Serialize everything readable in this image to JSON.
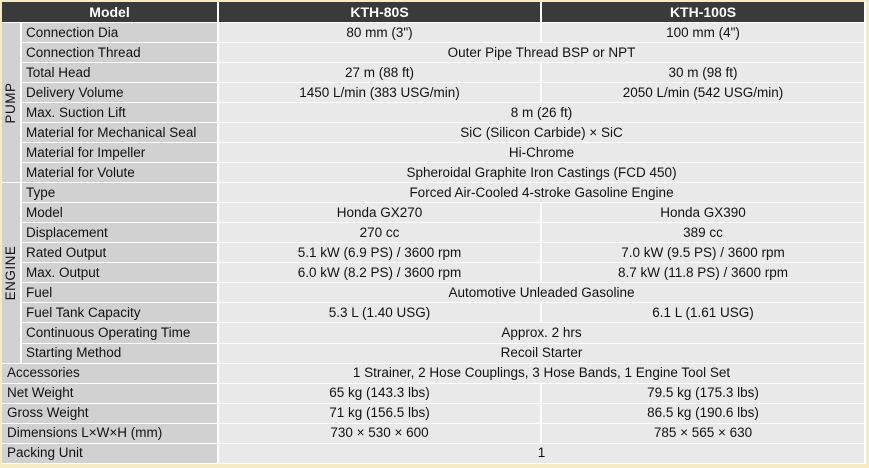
{
  "header": {
    "model": "Model",
    "m1": "KTH-80S",
    "m2": "KTH-100S"
  },
  "groups": {
    "pump": "PUMP",
    "engine": "ENGINE"
  },
  "rows": [
    {
      "label": "Connection Dia",
      "v1": "80 mm (3\")",
      "v2": "100 mm (4\")"
    },
    {
      "label": "Connection Thread",
      "v": "Outer Pipe Thread BSP or NPT"
    },
    {
      "label": "Total Head",
      "v1": "27 m (88 ft)",
      "v2": "30 m (98 ft)"
    },
    {
      "label": "Delivery Volume",
      "v1": "1450 L/min (383 USG/min)",
      "v2": "2050 L/min (542 USG/min)"
    },
    {
      "label": "Max. Suction Lift",
      "v": "8 m (26 ft)"
    },
    {
      "label": "Material for Mechanical Seal",
      "v": "SiC (Silicon Carbide) × SiC"
    },
    {
      "label": "Material for Impeller",
      "v": "Hi-Chrome"
    },
    {
      "label": "Material for Volute",
      "v": "Spheroidal Graphite Iron Castings (FCD 450)"
    },
    {
      "label": "Type",
      "v": "Forced Air-Cooled 4-stroke Gasoline Engine"
    },
    {
      "label": "Model",
      "v1": "Honda GX270",
      "v2": "Honda GX390"
    },
    {
      "label": "Displacement",
      "v1": "270 cc",
      "v2": "389 cc"
    },
    {
      "label": "Rated Output",
      "v1": "5.1 kW (6.9 PS) / 3600 rpm",
      "v2": "7.0 kW (9.5 PS) / 3600 rpm"
    },
    {
      "label": "Max. Output",
      "v1": "6.0 kW (8.2 PS) / 3600 rpm",
      "v2": "8.7 kW (11.8 PS) / 3600 rpm"
    },
    {
      "label": "Fuel",
      "v": "Automotive Unleaded Gasoline"
    },
    {
      "label": "Fuel Tank Capacity",
      "v1": "5.3 L (1.40 USG)",
      "v2": "6.1 L (1.61 USG)"
    },
    {
      "label": "Continuous Operating Time",
      "v": "Approx. 2 hrs"
    },
    {
      "label": "Starting Method",
      "v": "Recoil Starter"
    },
    {
      "label": "Accessories",
      "v": "1 Strainer,   2 Hose Couplings,   3 Hose Bands, 1 Engine Tool Set"
    },
    {
      "label": "Net Weight",
      "v1": "65 kg (143.3 lbs)",
      "v2": "79.5 kg (175.3 lbs)"
    },
    {
      "label": "Gross Weight",
      "v1": "71 kg (156.5 lbs)",
      "v2": "86.5 kg (190.6 lbs)"
    },
    {
      "label": "Dimensions L×W×H (mm)",
      "v1": "730 × 530 × 600",
      "v2": "785 × 565 × 630"
    },
    {
      "label": "Packing Unit",
      "v": "1"
    }
  ]
}
